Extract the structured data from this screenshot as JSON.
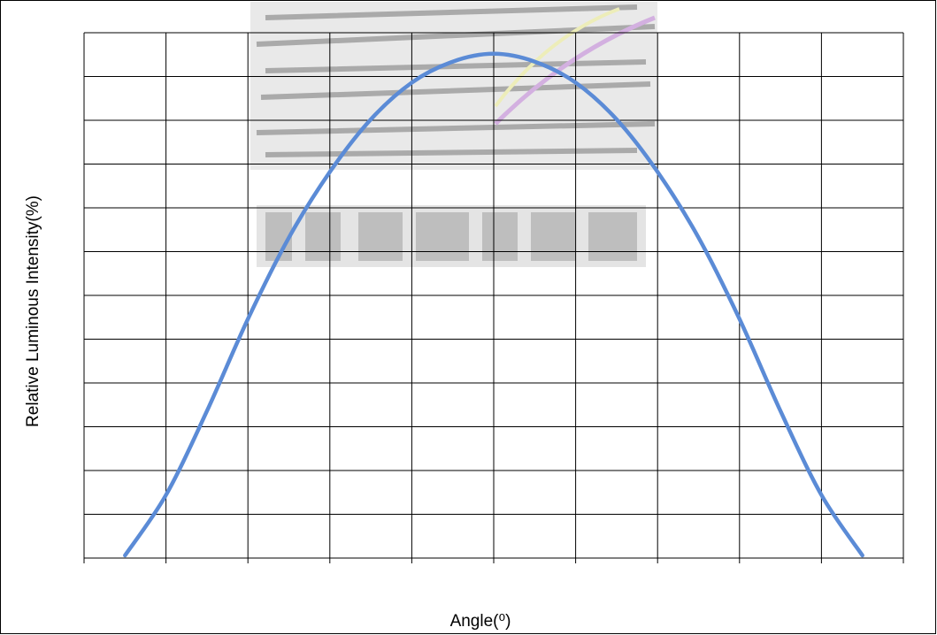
{
  "chart_data": {
    "type": "line",
    "title": "",
    "xlabel": "Angle(⁰)",
    "ylabel": "Relative Luminous Intensity(%)",
    "xlim": [
      -100,
      100
    ],
    "ylim": [
      0,
      100
    ],
    "x_grid_count": 10,
    "y_grid_count": 12,
    "grid": true,
    "legend": "none",
    "series": [
      {
        "color": "#5b8bd6",
        "x": [
          -90,
          -80,
          -70,
          -60,
          -50,
          -40,
          -30,
          -20,
          -10,
          0,
          10,
          20,
          30,
          40,
          50,
          60,
          70,
          80,
          90
        ],
        "y": [
          0.5,
          12,
          28,
          45.5,
          61,
          73.5,
          83.5,
          90.5,
          94.5,
          96,
          94.5,
          90.5,
          83.5,
          73.5,
          61,
          45.5,
          28,
          12,
          0.5
        ]
      }
    ]
  }
}
